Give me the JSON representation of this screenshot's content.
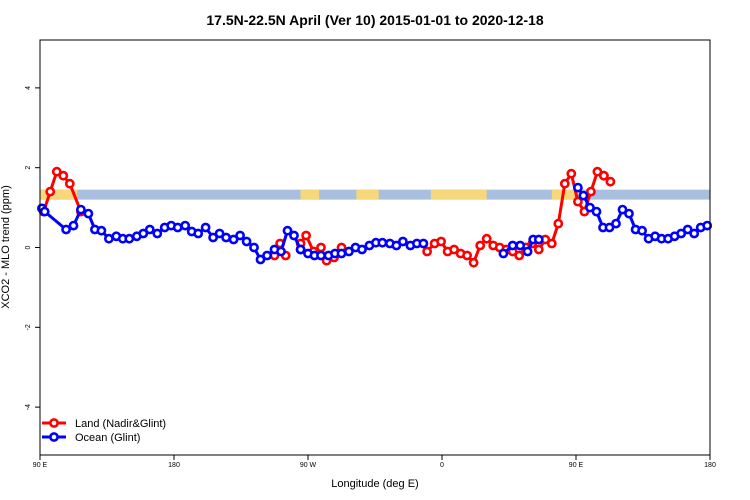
{
  "chart_data": {
    "type": "line",
    "title": "17.5N-22.5N April (Ver 10)   2015-01-01 to 2020-12-18",
    "xlabel": "Longitude (deg E)",
    "ylabel": "XCO2 - MLO trend (ppm)",
    "xlim": [
      90,
      450
    ],
    "ylim": [
      -5.2,
      5.2
    ],
    "xticks": [
      {
        "value": 90,
        "label": "90 E"
      },
      {
        "value": 162,
        "label": "180"
      },
      {
        "value": 234,
        "label": "90 W"
      },
      {
        "value": 306,
        "label": "0"
      },
      {
        "value": 378,
        "label": "90 E"
      },
      {
        "value": 450,
        "label": "180"
      }
    ],
    "yticks": [
      {
        "value": -4,
        "label": "-4"
      },
      {
        "value": -2,
        "label": "-2"
      },
      {
        "value": 0,
        "label": "0"
      },
      {
        "value": 2,
        "label": "2"
      },
      {
        "value": 4,
        "label": "4"
      }
    ],
    "legend_position": "bottom-left",
    "land_band": {
      "y_range": [
        1.2,
        1.45
      ],
      "ocean_color": "#a8bfdf",
      "land_color": "#f7d77b",
      "land_segments": [
        [
          90,
          110
        ],
        [
          230,
          240
        ],
        [
          260,
          272
        ],
        [
          300,
          330
        ],
        [
          365,
          380
        ]
      ]
    },
    "series": [
      {
        "name": "Land (Nadir&Glint)",
        "color": "#ff0000",
        "segments": [
          {
            "x": [
              92,
              95.5,
              99,
              102.5,
              106,
              112
            ],
            "y": [
              0.9,
              1.4,
              1.9,
              1.8,
              1.6,
              0.9
            ]
          },
          {
            "x": [
              216,
              219,
              222
            ],
            "y": [
              -0.2,
              0.1,
              -0.2
            ]
          },
          {
            "x": [
              230,
              233,
              237,
              241,
              244,
              248,
              252
            ],
            "y": [
              0.1,
              0.3,
              -0.1,
              0.0,
              -0.33,
              -0.25,
              0.0
            ]
          },
          {
            "x": [
              298,
              302,
              305.5,
              309,
              312.5,
              316,
              319.5,
              323,
              326.5,
              330,
              333.5,
              337,
              340.5,
              344,
              347.5,
              351,
              354.5,
              358,
              361.5,
              365,
              368.5,
              372,
              375.5,
              379,
              382.5,
              386,
              389.5,
              393
            ],
            "y": [
              -0.1,
              0.1,
              0.15,
              -0.1,
              -0.05,
              -0.15,
              -0.2,
              -0.38,
              0.05,
              0.22,
              0.05,
              0.0,
              -0.05,
              -0.1,
              -0.2,
              0.0,
              0.1,
              -0.05,
              0.2,
              0.1,
              0.6,
              1.6,
              1.85,
              1.15,
              0.9,
              1.4,
              1.9,
              1.8
            ]
          },
          {
            "x": [
              393,
              396.5
            ],
            "y": [
              1.8,
              1.65
            ]
          }
        ]
      },
      {
        "name": "Ocean (Glint)",
        "color": "#0000ff",
        "segments": [
          {
            "x": [
              91,
              92.5,
              104,
              108,
              112,
              116,
              119.5,
              123,
              127,
              131,
              134.5,
              138,
              142,
              145.5,
              149,
              153,
              157,
              160.5,
              164,
              168,
              171.5,
              175,
              179,
              183,
              186.5,
              190,
              194,
              197.5,
              201,
              205,
              208.5,
              212,
              216,
              219.5,
              223,
              226.5,
              230
            ],
            "y": [
              0.98,
              0.9,
              0.45,
              0.55,
              0.95,
              0.85,
              0.45,
              0.42,
              0.22,
              0.28,
              0.22,
              0.22,
              0.28,
              0.35,
              0.45,
              0.35,
              0.5,
              0.55,
              0.5,
              0.55,
              0.4,
              0.35,
              0.5,
              0.25,
              0.35,
              0.25,
              0.2,
              0.3,
              0.15,
              0.0,
              -0.3,
              -0.2,
              -0.05,
              -0.1,
              0.42,
              0.3,
              -0.05
            ]
          },
          {
            "x": [
              230,
              234,
              237.5,
              241,
              245,
              248.5,
              252,
              256,
              259.5,
              263,
              267,
              270.5,
              274,
              278,
              281.5,
              285,
              289,
              292.5,
              296
            ],
            "y": [
              -0.05,
              -0.15,
              -0.2,
              -0.2,
              -0.2,
              -0.15,
              -0.15,
              -0.1,
              0.0,
              -0.05,
              0.05,
              0.12,
              0.12,
              0.1,
              0.05,
              0.15,
              0.05,
              0.1,
              0.1
            ]
          },
          {
            "x": [
              339,
              344,
              348,
              352,
              355,
              358
            ],
            "y": [
              -0.15,
              0.05,
              0.05,
              -0.1,
              0.2,
              0.2
            ]
          },
          {
            "x": [
              379,
              382,
              385.5,
              389,
              392.5,
              396,
              399.5,
              403,
              406.5,
              410,
              413.5,
              417,
              420.5,
              424,
              427.5,
              431,
              434.5,
              438,
              441.5,
              445,
              448.5
            ],
            "y": [
              1.5,
              1.3,
              1.0,
              0.9,
              0.5,
              0.5,
              0.6,
              0.95,
              0.85,
              0.45,
              0.42,
              0.22,
              0.28,
              0.22,
              0.22,
              0.28,
              0.35,
              0.45,
              0.35,
              0.5,
              0.55
            ]
          }
        ]
      }
    ]
  }
}
